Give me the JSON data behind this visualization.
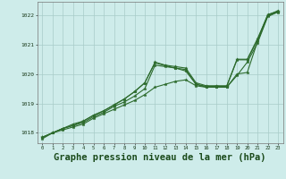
{
  "bg_color": "#ceecea",
  "grid_color": "#a8ccc8",
  "line_color": "#2d6b2d",
  "title": "Graphe pression niveau de la mer (hPa)",
  "title_fontsize": 7.5,
  "title_color": "#1a4a1a",
  "xmin": -0.5,
  "xmax": 23.5,
  "ymin": 1017.65,
  "ymax": 1022.45,
  "yticks": [
    1018,
    1019,
    1020,
    1021,
    1022
  ],
  "xticks": [
    0,
    1,
    2,
    3,
    4,
    5,
    6,
    7,
    8,
    9,
    10,
    11,
    12,
    13,
    14,
    15,
    16,
    17,
    18,
    19,
    20,
    21,
    22,
    23
  ],
  "line1_x": [
    0,
    1,
    2,
    3,
    4,
    5,
    6,
    7,
    8,
    9,
    10,
    11,
    12,
    13,
    14,
    15,
    16,
    17,
    18,
    19,
    20,
    21,
    22,
    23
  ],
  "line1_y": [
    1017.8,
    1018.0,
    1018.1,
    1018.2,
    1018.3,
    1018.5,
    1018.65,
    1018.8,
    1018.95,
    1019.1,
    1019.3,
    1019.55,
    1019.65,
    1019.75,
    1019.8,
    1019.6,
    1019.55,
    1019.55,
    1019.55,
    1019.95,
    1020.4,
    1021.05,
    1021.95,
    1022.1
  ],
  "line2_x": [
    0,
    1,
    2,
    3,
    4,
    5,
    6,
    7,
    8,
    9,
    10,
    11,
    12,
    13,
    14,
    15,
    16,
    17,
    18,
    19,
    20,
    21,
    22,
    23
  ],
  "line2_y": [
    1017.85,
    1018.0,
    1018.15,
    1018.25,
    1018.35,
    1018.55,
    1018.7,
    1018.9,
    1019.05,
    1019.25,
    1019.5,
    1020.3,
    1020.25,
    1020.2,
    1020.1,
    1019.65,
    1019.55,
    1019.55,
    1019.55,
    1020.0,
    1020.05,
    1021.1,
    1021.98,
    1022.12
  ],
  "line3_x": [
    0,
    1,
    2,
    3,
    4,
    5,
    6,
    7,
    8,
    9,
    10,
    11,
    12,
    13,
    14,
    15,
    16,
    17,
    18,
    19,
    20,
    21,
    22,
    23
  ],
  "line3_y": [
    1017.85,
    1018.0,
    1018.15,
    1018.25,
    1018.4,
    1018.6,
    1018.75,
    1018.95,
    1019.15,
    1019.4,
    1019.7,
    1020.4,
    1020.3,
    1020.25,
    1020.2,
    1019.7,
    1019.6,
    1019.6,
    1019.6,
    1020.5,
    1020.5,
    1021.2,
    1022.0,
    1022.15
  ],
  "line4_x": [
    0,
    1,
    2,
    3,
    4,
    5,
    6,
    7,
    8,
    9,
    10,
    11,
    12,
    13,
    14,
    15,
    16,
    17,
    18,
    19,
    20,
    21,
    22,
    23
  ],
  "line4_y": [
    1017.85,
    1018.0,
    1018.15,
    1018.3,
    1018.4,
    1018.6,
    1018.75,
    1018.95,
    1019.15,
    1019.4,
    1019.7,
    1020.38,
    1020.28,
    1020.2,
    1020.15,
    1019.65,
    1019.58,
    1019.58,
    1019.58,
    1020.48,
    1020.48,
    1021.15,
    1022.02,
    1022.12
  ]
}
